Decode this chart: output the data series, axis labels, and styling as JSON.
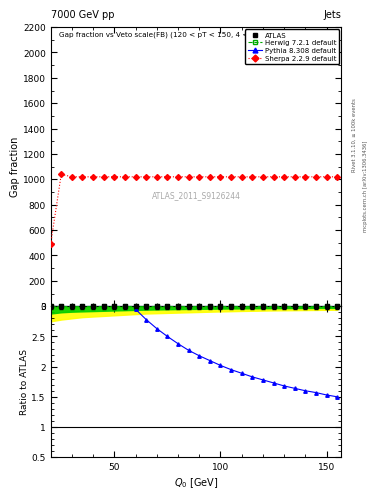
{
  "title_left": "7000 GeV pp",
  "title_right": "Jets",
  "main_title": "Gap fraction vs Veto scale(FB) (120 < pT < 150, 4 <Δy < 5)",
  "xlabel": "Q_0 [GeV]",
  "ylabel_main": "Gap fraction",
  "ylabel_ratio": "Ratio to ATLAS",
  "watermark": "ATLAS_2011_S9126244",
  "right_label": "mcplots.cern.ch [arXiv:1306.3436]",
  "rivet_label": "Rivet 3.1.10, ≥ 100k events",
  "x_min": 20,
  "x_max": 157,
  "main_ylim": [
    0,
    2200
  ],
  "ratio_ylim": [
    0.5,
    3.0
  ],
  "atlas_x": [
    20,
    25,
    30,
    35,
    40,
    45,
    50,
    55,
    60,
    65,
    70,
    75,
    80,
    85,
    90,
    95,
    100,
    105,
    110,
    115,
    120,
    125,
    130,
    135,
    140,
    145,
    150,
    155
  ],
  "atlas_err_green": [
    0.12,
    0.1,
    0.09,
    0.085,
    0.08,
    0.075,
    0.07,
    0.065,
    0.06,
    0.056,
    0.053,
    0.05,
    0.047,
    0.045,
    0.043,
    0.041,
    0.039,
    0.037,
    0.036,
    0.034,
    0.033,
    0.032,
    0.031,
    0.03,
    0.029,
    0.028,
    0.027,
    0.027
  ],
  "atlas_err_yellow": [
    0.25,
    0.22,
    0.2,
    0.18,
    0.17,
    0.16,
    0.15,
    0.14,
    0.13,
    0.12,
    0.115,
    0.11,
    0.105,
    0.1,
    0.095,
    0.09,
    0.086,
    0.082,
    0.078,
    0.075,
    0.072,
    0.069,
    0.067,
    0.065,
    0.063,
    0.061,
    0.059,
    0.058
  ],
  "atlas_ratio_y": [
    3.0,
    3.0,
    3.0,
    3.0,
    3.0,
    3.0,
    3.0,
    3.0,
    3.0,
    3.0,
    3.0,
    3.0,
    3.0,
    3.0,
    3.0,
    3.0,
    3.0,
    3.0,
    3.0,
    3.0,
    3.0,
    3.0,
    3.0,
    3.0,
    3.0,
    3.0,
    3.0,
    3.0
  ],
  "herwig_ratio_y": [
    3.0,
    3.0,
    3.0,
    3.0,
    3.0,
    3.0,
    3.0,
    3.0,
    3.0,
    3.0,
    3.0,
    3.0,
    3.0,
    3.0,
    3.0,
    3.0,
    3.0,
    3.0,
    3.0,
    3.0,
    3.0,
    3.0,
    3.0,
    3.0,
    3.0,
    3.0,
    3.0,
    3.0
  ],
  "pythia_x": [
    60,
    65,
    70,
    75,
    80,
    85,
    90,
    95,
    100,
    105,
    110,
    115,
    120,
    125,
    130,
    135,
    140,
    145,
    150,
    155
  ],
  "pythia_ratio": [
    2.95,
    2.78,
    2.63,
    2.5,
    2.38,
    2.27,
    2.18,
    2.1,
    2.02,
    1.95,
    1.89,
    1.83,
    1.78,
    1.73,
    1.68,
    1.64,
    1.6,
    1.57,
    1.53,
    1.5
  ],
  "sherpa_x": [
    20,
    25,
    30,
    35,
    40,
    45,
    50,
    55,
    60,
    65,
    70,
    75,
    80,
    85,
    90,
    95,
    100,
    105,
    110,
    115,
    120,
    125,
    130,
    135,
    140,
    145,
    150,
    155
  ],
  "sherpa_y_main": [
    490,
    1040,
    1020,
    1020,
    1020,
    1020,
    1020,
    1020,
    1020,
    1020,
    1020,
    1020,
    1020,
    1020,
    1020,
    1020,
    1020,
    1020,
    1020,
    1020,
    1020,
    1020,
    1020,
    1020,
    1020,
    1020,
    1020,
    1020
  ],
  "atlas_main_y": [
    0,
    0,
    0,
    0,
    0,
    0,
    0,
    0,
    0,
    0,
    0,
    0,
    0,
    0,
    0,
    0,
    0,
    0,
    0,
    0,
    0,
    0,
    0,
    0,
    0,
    0,
    0,
    0
  ],
  "color_atlas": "#000000",
  "color_herwig": "#00aa00",
  "color_pythia": "#0000ff",
  "color_sherpa": "#ff0000",
  "color_green_band": "#00cc00",
  "color_yellow_band": "#ffff00",
  "ratio_yticks": [
    0.5,
    1.0,
    1.5,
    2.0,
    2.5,
    3.0
  ],
  "ratio_ytick_labels": [
    "0.5",
    "1",
    "1.5",
    "2",
    "2.5",
    "3"
  ],
  "main_yticks": [
    0,
    200,
    400,
    600,
    800,
    1000,
    1200,
    1400,
    1600,
    1800,
    2000,
    2200
  ]
}
